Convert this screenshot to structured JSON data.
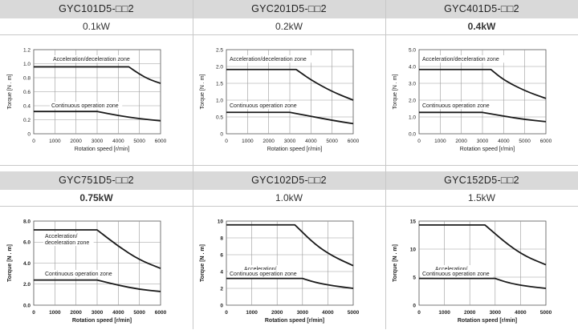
{
  "chart_data": [
    {
      "type": "line",
      "model": "GYC101D5-□□2",
      "power": "0.1kW",
      "xlabel": "Rotation speed [r/min]",
      "ylabel": "Torque [N . m]",
      "xlim": [
        0,
        6000
      ],
      "ylim": [
        0,
        1.2
      ],
      "xticks": [
        "0",
        "1000",
        "2000",
        "3000",
        "4000",
        "5000",
        "6000"
      ],
      "yticks": [
        "0",
        "0.2",
        "0.4",
        "0.6",
        "0.8",
        "1.0",
        "1.2"
      ],
      "grid": true,
      "zones": [
        {
          "name": "Acceleration/deceleration zone",
          "x": [
            0,
            4500,
            5000,
            5500,
            6000
          ],
          "y": [
            0.955,
            0.955,
            0.85,
            0.77,
            0.72
          ]
        },
        {
          "name": "Continuous operation zone",
          "x": [
            0,
            3000,
            4000,
            5000,
            6000
          ],
          "y": [
            0.318,
            0.318,
            0.26,
            0.215,
            0.185
          ]
        }
      ]
    },
    {
      "type": "line",
      "model": "GYC201D5-□□2",
      "power": "0.2kW",
      "xlabel": "Rotation speed [r/min]",
      "ylabel": "Torque [N . m]",
      "xlim": [
        0,
        6000
      ],
      "ylim": [
        0,
        2.5
      ],
      "xticks": [
        "0",
        "1000",
        "2000",
        "3000",
        "4000",
        "5000",
        "6000"
      ],
      "yticks": [
        "0",
        "0.5",
        "1.0",
        "1.5",
        "2.0",
        "2.5"
      ],
      "grid": true,
      "zones": [
        {
          "name": "Acceleration/deceleration zone",
          "x": [
            0,
            3300,
            4000,
            5000,
            6000
          ],
          "y": [
            1.91,
            1.91,
            1.6,
            1.25,
            1.0
          ]
        },
        {
          "name": "Continuous operation zone",
          "x": [
            0,
            3000,
            4000,
            5000,
            6000
          ],
          "y": [
            0.637,
            0.637,
            0.52,
            0.4,
            0.3
          ]
        }
      ]
    },
    {
      "type": "line",
      "model": "GYC401D5-□□2",
      "power": "0.4kW",
      "xlabel": "Rotation speed [r/min]",
      "ylabel": "Torque [N . m]",
      "xlim": [
        0,
        6000
      ],
      "ylim": [
        0,
        5.0
      ],
      "xticks": [
        "0",
        "1000",
        "2000",
        "3000",
        "4000",
        "5000",
        "6000"
      ],
      "yticks": [
        "0.0",
        "1.0",
        "2.0",
        "3.0",
        "4.0",
        "5.0"
      ],
      "grid": true,
      "zones": [
        {
          "name": "Acceleration/deceleration zone",
          "x": [
            0,
            3400,
            4000,
            5000,
            6000
          ],
          "y": [
            3.82,
            3.82,
            3.2,
            2.55,
            2.1
          ]
        },
        {
          "name": "Continuous operation zone",
          "x": [
            0,
            3000,
            4000,
            5000,
            6000
          ],
          "y": [
            1.27,
            1.27,
            1.05,
            0.85,
            0.72
          ]
        }
      ]
    },
    {
      "type": "line",
      "model": "GYC751D5-□□2",
      "power": "0.75kW",
      "xlabel": "Rotation speed [r/min]",
      "ylabel": "Torque [N . m]",
      "xlim": [
        0,
        6000
      ],
      "ylim": [
        0,
        8.0
      ],
      "xticks": [
        "0",
        "1000",
        "2000",
        "3000",
        "4000",
        "5000",
        "6000"
      ],
      "yticks": [
        "0.0",
        "2.0",
        "4.0",
        "6.0",
        "8.0"
      ],
      "grid": true,
      "zones": [
        {
          "name": "Acceleration/\ndeceleration zone",
          "x": [
            0,
            3000,
            4000,
            5000,
            6000
          ],
          "y": [
            7.16,
            7.16,
            5.6,
            4.3,
            3.5
          ]
        },
        {
          "name": "Continuous operation zone",
          "x": [
            0,
            3000,
            4000,
            5000,
            6000
          ],
          "y": [
            2.39,
            2.39,
            1.9,
            1.5,
            1.3
          ]
        }
      ]
    },
    {
      "type": "line",
      "model": "GYC102D5-□□2",
      "power": "1.0kW",
      "xlabel": "Rotation speed [r/min]",
      "ylabel": "Torque [N . m]",
      "xlim": [
        0,
        5000
      ],
      "ylim": [
        0,
        10
      ],
      "xticks": [
        "0",
        "1000",
        "2000",
        "3000",
        "4000",
        "5000"
      ],
      "yticks": [
        "0",
        "2",
        "4",
        "6",
        "8",
        "10"
      ],
      "grid": true,
      "zones": [
        {
          "name": "Acceleration/\ndeceleration zone",
          "x": [
            0,
            2700,
            3500,
            4200,
            5000
          ],
          "y": [
            9.55,
            9.55,
            7.2,
            5.8,
            4.7
          ]
        },
        {
          "name": "Continuous operation zone",
          "x": [
            0,
            3000,
            3500,
            4200,
            5000
          ],
          "y": [
            3.18,
            3.18,
            2.7,
            2.3,
            2.0
          ]
        }
      ]
    },
    {
      "type": "line",
      "model": "GYC152D5-□□2",
      "power": "1.5kW",
      "xlabel": "Rotation speed [r/min]",
      "ylabel": "Torque [N . m]",
      "xlim": [
        0,
        5000
      ],
      "ylim": [
        0,
        15
      ],
      "xticks": [
        "0",
        "1000",
        "2000",
        "3000",
        "4000",
        "5000"
      ],
      "yticks": [
        "0",
        "5",
        "10",
        "15"
      ],
      "grid": true,
      "zones": [
        {
          "name": "Acceleration/\ndeceleration zone",
          "x": [
            0,
            2600,
            3500,
            4200,
            5000
          ],
          "y": [
            14.3,
            14.3,
            10.8,
            8.7,
            7.2
          ]
        },
        {
          "name": "Continuous operation zone",
          "x": [
            0,
            3000,
            3500,
            4200,
            5000
          ],
          "y": [
            4.77,
            4.77,
            4.0,
            3.4,
            3.0
          ]
        }
      ]
    }
  ]
}
